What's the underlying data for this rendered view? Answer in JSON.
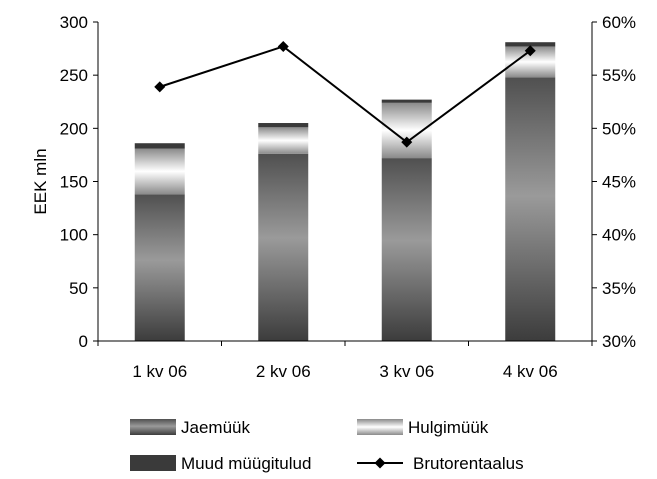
{
  "chart_data": {
    "type": "bar",
    "stacked": true,
    "categories": [
      "1 kv 06",
      "2 kv 06",
      "3 kv 06",
      "4 kv 06"
    ],
    "series": [
      {
        "name": "Jaemüük",
        "axis": "left",
        "values": [
          138,
          176,
          172,
          248
        ]
      },
      {
        "name": "Hulgimüük",
        "axis": "left",
        "values": [
          43,
          25,
          52,
          29
        ]
      },
      {
        "name": "Muud müügitulud",
        "axis": "left",
        "values": [
          5,
          4,
          3,
          4
        ]
      },
      {
        "name": "Brutorentaalus",
        "axis": "right",
        "kind": "line",
        "values": [
          0.539,
          0.577,
          0.487,
          0.573
        ]
      }
    ],
    "ylabel": "EEK mln",
    "ylim": [
      0,
      300
    ],
    "yticks": [
      "0",
      "50",
      "100",
      "150",
      "200",
      "250",
      "300"
    ],
    "y2lim": [
      0.3,
      0.6
    ],
    "y2ticks": [
      "30%",
      "35%",
      "40%",
      "45%",
      "50%",
      "55%",
      "60%"
    ],
    "grid": false,
    "legend_position": "bottom",
    "legend": [
      {
        "label": "Jaemüük",
        "series": 0
      },
      {
        "label": "Hulgimüük",
        "series": 1
      },
      {
        "label": "Muud müügitulud",
        "series": 2
      },
      {
        "label": "Brutorentaalus",
        "series": 3
      }
    ],
    "colors": {
      "axis": "#000000",
      "line": "#000000",
      "muud": "#3a3a3a"
    }
  }
}
